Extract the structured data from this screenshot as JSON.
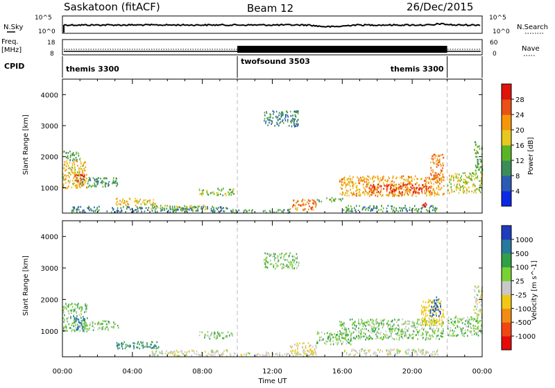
{
  "header": {
    "station": "Saskatoon (fitACF)",
    "beam": "Beam 12",
    "date": "26/Dec/2015"
  },
  "noise_panel": {
    "left_label": "N.Sky",
    "right_label": "N.Search",
    "left_ticks": [
      "10^5",
      "10^0"
    ],
    "right_ticks": [
      "10^5",
      "10^0"
    ]
  },
  "freq_panel": {
    "left_label_1": "Freq.",
    "left_label_2": "[MHz]",
    "right_label": "Nave",
    "left_ticks": [
      "18",
      "8"
    ],
    "right_ticks": [
      "60",
      "0"
    ]
  },
  "cpid_panel": {
    "label": "CPID",
    "segments": [
      {
        "name": "themis 3300",
        "start_hour": 0.0,
        "end_hour": 10.0
      },
      {
        "name": "twofsound 3503",
        "start_hour": 10.0,
        "end_hour": 22.0
      },
      {
        "name": "themis 3300",
        "start_hour": 22.0,
        "end_hour": 24.0
      }
    ]
  },
  "x_axis": {
    "label": "Time UT",
    "ticks": [
      "00:00",
      "04:00",
      "08:00",
      "12:00",
      "16:00",
      "20:00",
      "00:00"
    ],
    "range_hours": [
      0,
      24
    ]
  },
  "chart_data": [
    {
      "type": "heatmap",
      "title": "",
      "parameter": "power",
      "xlabel": "",
      "ylabel": "Slant Range [km]",
      "ylim_km": [
        180,
        4500
      ],
      "yticks": [
        "1000",
        "2000",
        "3000",
        "4000"
      ],
      "colorbar_label": "Power [dB]",
      "colorbar_ticks": [
        "4",
        "8",
        "12",
        "16",
        "20",
        "24",
        "28"
      ],
      "colorbar_range": [
        0,
        30
      ],
      "colorbar_colors": [
        "#0a28e6",
        "#2d5ab4",
        "#3c8c5a",
        "#5ab428",
        "#e6c81e",
        "#f5960a",
        "#eb5014",
        "#e1140a"
      ],
      "scatter_features": [
        {
          "t_start": 0.0,
          "t_end": 1.4,
          "range_start": 1000,
          "range_end": 1900,
          "power_db": 18
        },
        {
          "t_start": 0.7,
          "t_end": 1.3,
          "range_start": 1100,
          "range_end": 1450,
          "power_db": 26
        },
        {
          "t_start": 0.0,
          "t_end": 1.0,
          "range_start": 1900,
          "range_end": 2200,
          "power_db": 12
        },
        {
          "t_start": 1.0,
          "t_end": 3.2,
          "range_start": 1050,
          "range_end": 1350,
          "power_db": 10
        },
        {
          "t_start": 0.5,
          "t_end": 9.5,
          "range_start": 230,
          "range_end": 420,
          "power_db": 8
        },
        {
          "t_start": 3.0,
          "t_end": 5.3,
          "range_start": 450,
          "range_end": 680,
          "power_db": 18
        },
        {
          "t_start": 5.0,
          "t_end": 8.2,
          "range_start": 280,
          "range_end": 460,
          "power_db": 14
        },
        {
          "t_start": 7.8,
          "t_end": 9.8,
          "range_start": 780,
          "range_end": 1000,
          "power_db": 14
        },
        {
          "t_start": 9.5,
          "t_end": 13.0,
          "range_start": 220,
          "range_end": 320,
          "power_db": 10
        },
        {
          "t_start": 13.0,
          "t_end": 14.5,
          "range_start": 300,
          "range_end": 650,
          "power_db": 22
        },
        {
          "t_start": 11.5,
          "t_end": 13.5,
          "range_start": 3000,
          "range_end": 3500,
          "power_db": 8
        },
        {
          "t_start": 14.5,
          "t_end": 16.0,
          "range_start": 580,
          "range_end": 700,
          "power_db": 12
        },
        {
          "t_start": 15.8,
          "t_end": 21.8,
          "range_start": 750,
          "range_end": 1400,
          "power_db": 20
        },
        {
          "t_start": 17.5,
          "t_end": 21.0,
          "range_start": 850,
          "range_end": 1150,
          "power_db": 26
        },
        {
          "t_start": 16.0,
          "t_end": 21.5,
          "range_start": 250,
          "range_end": 450,
          "power_db": 10
        },
        {
          "t_start": 20.5,
          "t_end": 21.0,
          "range_start": 420,
          "range_end": 560,
          "power_db": 26
        },
        {
          "t_start": 21.0,
          "t_end": 21.8,
          "range_start": 1200,
          "range_end": 2100,
          "power_db": 22
        },
        {
          "t_start": 22.0,
          "t_end": 24.0,
          "range_start": 850,
          "range_end": 1500,
          "power_db": 16
        },
        {
          "t_start": 23.5,
          "t_end": 24.0,
          "range_start": 1500,
          "range_end": 2500,
          "power_db": 12
        }
      ]
    },
    {
      "type": "heatmap",
      "title": "",
      "parameter": "velocity",
      "xlabel": "Time UT",
      "ylabel": "Slant Range [km]",
      "ylim_km": [
        180,
        4500
      ],
      "yticks": [
        "1000",
        "2000",
        "3000",
        "4000"
      ],
      "colorbar_label": "Velocity [m s^-1]",
      "colorbar_ticks": [
        "1000",
        "500",
        "100",
        "25",
        "-25",
        "-100",
        "-500",
        "-1000"
      ],
      "colorbar_colors": [
        "#1e3cbe",
        "#2878a0",
        "#32a046",
        "#78d232",
        "#c8c8c8",
        "#f0c814",
        "#f08c14",
        "#f04614",
        "#e60a0a"
      ],
      "scatter_features": [
        {
          "t_start": 0.0,
          "t_end": 1.4,
          "range_start": 1000,
          "range_end": 1900,
          "velocity": 0
        },
        {
          "t_start": 0.6,
          "t_end": 1.3,
          "range_start": 1050,
          "range_end": 1500,
          "velocity": 300
        },
        {
          "t_start": 1.0,
          "t_end": 3.2,
          "range_start": 1050,
          "range_end": 1350,
          "velocity": 0
        },
        {
          "t_start": 3.0,
          "t_end": 5.5,
          "range_start": 450,
          "range_end": 680,
          "velocity": 100
        },
        {
          "t_start": 5.0,
          "t_end": 9.5,
          "range_start": 220,
          "range_end": 420,
          "velocity": -60
        },
        {
          "t_start": 7.8,
          "t_end": 9.8,
          "range_start": 780,
          "range_end": 1000,
          "velocity": 0
        },
        {
          "t_start": 9.5,
          "t_end": 14.5,
          "range_start": 220,
          "range_end": 350,
          "velocity": -60
        },
        {
          "t_start": 13.0,
          "t_end": 14.5,
          "range_start": 300,
          "range_end": 650,
          "velocity": -100
        },
        {
          "t_start": 11.5,
          "t_end": 13.5,
          "range_start": 3000,
          "range_end": 3500,
          "velocity": 0
        },
        {
          "t_start": 14.5,
          "t_end": 16.5,
          "range_start": 600,
          "range_end": 1000,
          "velocity": 0
        },
        {
          "t_start": 15.8,
          "t_end": 21.8,
          "range_start": 750,
          "range_end": 1400,
          "velocity": 0
        },
        {
          "t_start": 16.0,
          "t_end": 21.5,
          "range_start": 250,
          "range_end": 450,
          "velocity": -60
        },
        {
          "t_start": 20.5,
          "t_end": 21.8,
          "range_start": 1200,
          "range_end": 2000,
          "velocity": -300
        },
        {
          "t_start": 21.0,
          "t_end": 21.6,
          "range_start": 1500,
          "range_end": 2100,
          "velocity": 500
        },
        {
          "t_start": 22.0,
          "t_end": 24.0,
          "range_start": 850,
          "range_end": 1500,
          "velocity": 0
        },
        {
          "t_start": 23.5,
          "t_end": 24.0,
          "range_start": 1500,
          "range_end": 2500,
          "velocity": -60
        }
      ]
    }
  ]
}
